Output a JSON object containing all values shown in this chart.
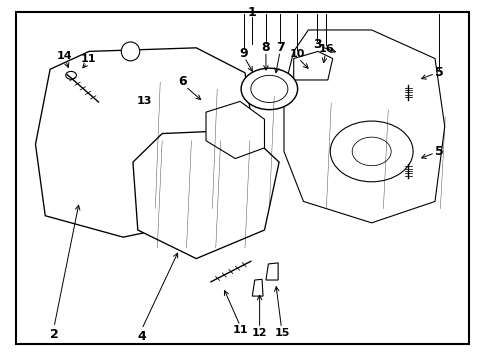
{
  "background_color": "#ffffff",
  "border_color": "#000000",
  "line_color": "#000000",
  "text_color": "#000000",
  "fig_width": 4.9,
  "fig_height": 3.6,
  "dpi": 100,
  "font_size": 9,
  "border_lw": 1.5
}
